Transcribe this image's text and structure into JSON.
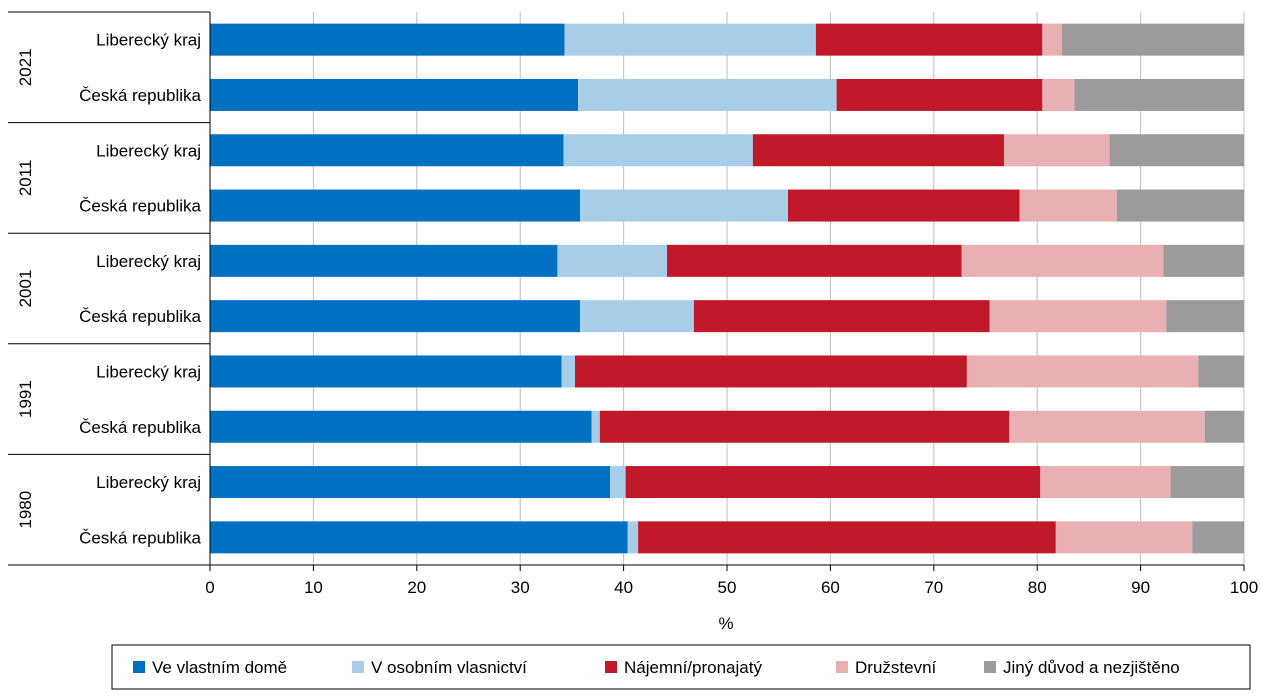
{
  "chart_data": {
    "type": "bar",
    "orientation": "horizontal",
    "stacked": true,
    "xlabel": "%",
    "xlim": [
      0,
      100
    ],
    "x_ticks": [
      "0",
      "10",
      "20",
      "30",
      "40",
      "50",
      "60",
      "70",
      "80",
      "90",
      "100"
    ],
    "grid": "vertical",
    "legend_position": "bottom",
    "groups": [
      {
        "label": "2021",
        "rows": [
          {
            "label": "Liberecký kraj",
            "values": [
              34.3,
              24.3,
              21.9,
              1.9,
              17.6
            ]
          },
          {
            "label": "Česká republika",
            "values": [
              35.6,
              25.0,
              19.9,
              3.1,
              16.4
            ]
          }
        ]
      },
      {
        "label": "2011",
        "rows": [
          {
            "label": "Liberecký kraj",
            "values": [
              34.2,
              18.3,
              24.3,
              10.2,
              13.0
            ]
          },
          {
            "label": "Česká republika",
            "values": [
              35.8,
              20.1,
              22.4,
              9.4,
              12.3
            ]
          }
        ]
      },
      {
        "label": "2001",
        "rows": [
          {
            "label": "Liberecký kraj",
            "values": [
              33.6,
              10.6,
              28.5,
              19.5,
              7.8
            ]
          },
          {
            "label": "Česká republika",
            "values": [
              35.8,
              11.0,
              28.6,
              17.1,
              7.5
            ]
          }
        ]
      },
      {
        "label": "1991",
        "rows": [
          {
            "label": "Liberecký kraj",
            "values": [
              34.0,
              1.3,
              37.9,
              22.4,
              4.4
            ]
          },
          {
            "label": "Česká republika",
            "values": [
              36.9,
              0.8,
              39.6,
              18.9,
              3.8
            ]
          }
        ]
      },
      {
        "label": "1980",
        "rows": [
          {
            "label": "Liberecký kraj",
            "values": [
              38.7,
              1.5,
              40.1,
              12.6,
              7.1
            ]
          },
          {
            "label": "Česká republika",
            "values": [
              40.4,
              1.0,
              40.4,
              13.2,
              5.0
            ]
          }
        ]
      }
    ],
    "series": [
      {
        "name": "Ve vlastním domě",
        "color": "#0070C0"
      },
      {
        "name": "V osobním vlasnictví",
        "color": "#A8CDE8"
      },
      {
        "name": "Nájemní/pronajatý",
        "color": "#C0192A"
      },
      {
        "name": "Družstevní",
        "color": "#E8B0B3"
      },
      {
        "name": "Jiný důvod a nezjištěno",
        "color": "#9B9B9B"
      }
    ]
  }
}
